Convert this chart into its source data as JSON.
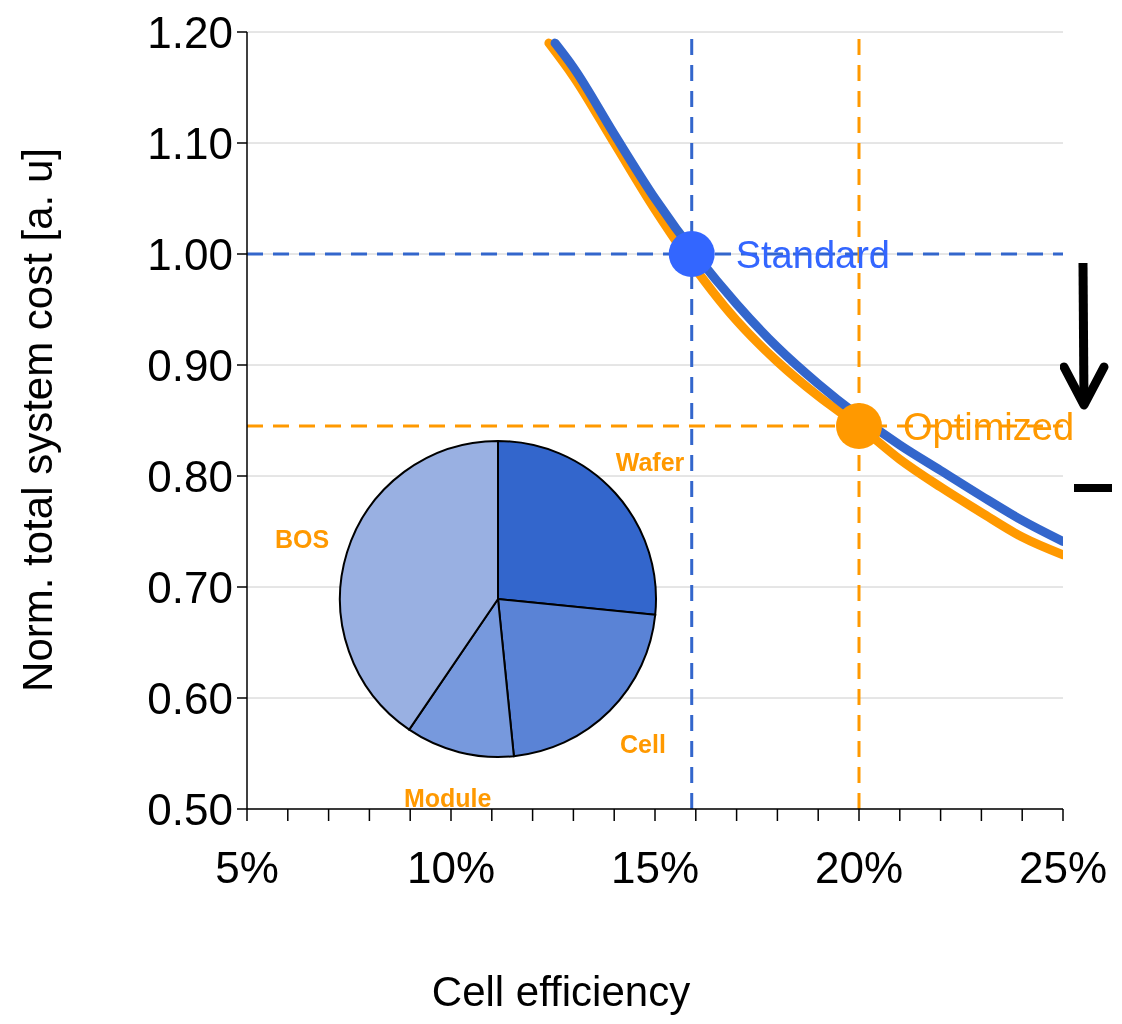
{
  "chart_data": [
    {
      "type": "line",
      "xlabel": "Cell efficiency",
      "ylabel": "Norm. total system cost [a. u]",
      "xlim": [
        5,
        25
      ],
      "ylim": [
        0.5,
        1.2
      ],
      "xticks": [
        {
          "value": 5,
          "label": "5%"
        },
        {
          "value": 6,
          "label": null
        },
        {
          "value": 7,
          "label": null
        },
        {
          "value": 8,
          "label": null
        },
        {
          "value": 9,
          "label": null
        },
        {
          "value": 10,
          "label": "10%"
        },
        {
          "value": 11,
          "label": null
        },
        {
          "value": 12,
          "label": null
        },
        {
          "value": 13,
          "label": null
        },
        {
          "value": 14,
          "label": null
        },
        {
          "value": 15,
          "label": "15%"
        },
        {
          "value": 16,
          "label": null
        },
        {
          "value": 17,
          "label": null
        },
        {
          "value": 18,
          "label": null
        },
        {
          "value": 19,
          "label": null
        },
        {
          "value": 20,
          "label": "20%"
        },
        {
          "value": 21,
          "label": null
        },
        {
          "value": 22,
          "label": null
        },
        {
          "value": 23,
          "label": null
        },
        {
          "value": 24,
          "label": null
        },
        {
          "value": 25,
          "label": "25%"
        }
      ],
      "yticks": [
        {
          "value": 0.5,
          "label": "0.50"
        },
        {
          "value": 0.6,
          "label": "0.60"
        },
        {
          "value": 0.7,
          "label": "0.70"
        },
        {
          "value": 0.8,
          "label": "0.80"
        },
        {
          "value": 0.9,
          "label": "0.90"
        },
        {
          "value": 1.0,
          "label": "1.00"
        },
        {
          "value": 1.1,
          "label": "1.10"
        },
        {
          "value": 1.2,
          "label": "1.20"
        }
      ],
      "grid": "y",
      "legend": false,
      "series": [
        {
          "type": "line",
          "color": "#ff9900",
          "x": [
            12.4,
            13,
            14,
            15,
            16,
            17,
            18,
            19,
            20,
            21,
            22,
            23,
            24,
            25
          ],
          "values": [
            1.19,
            1.16,
            1.1,
            1.04,
            null,
            0.94,
            0.903,
            0.872,
            0.845,
            0.815,
            0.79,
            0.767,
            0.745,
            0.729
          ]
        },
        {
          "type": "line",
          "color": "#3366cc",
          "x": [
            12.55,
            13,
            14,
            15,
            16,
            17,
            18,
            19,
            20,
            21,
            22,
            23,
            24,
            25
          ],
          "values": [
            1.19,
            1.168,
            1.108,
            1.05,
            null,
            0.955,
            0.916,
            0.883,
            null,
            0.828,
            0.805,
            0.782,
            0.76,
            0.741
          ]
        },
        {
          "type": "scatter",
          "name": "Standard",
          "color": "#3366ff",
          "x": [
            15.9
          ],
          "values": [
            1.0
          ]
        },
        {
          "type": "scatter",
          "name": "Optimized",
          "color": "#ff9900",
          "x": [
            20
          ],
          "values": [
            0.845
          ]
        }
      ],
      "ref_lines": [
        {
          "axis": "y",
          "value": 1.0,
          "color": "#3366cc",
          "line_style": "dashed"
        },
        {
          "axis": "x",
          "value": 15.9,
          "color": "#3366cc",
          "line_style": "dashed"
        },
        {
          "axis": "y",
          "value": 0.845,
          "color": "#ff9900",
          "line_style": "dashed"
        },
        {
          "axis": "x",
          "value": 20,
          "color": "#ff9900",
          "line_style": "dashed"
        }
      ]
    },
    {
      "type": "pie",
      "categories": [
        "Wafer",
        "Cell",
        "Module",
        "BOS"
      ],
      "values": [
        26.6,
        21.8,
        11.1,
        40.5
      ],
      "colors": [
        "#3366cc",
        "#5a83d6",
        "#7799dd",
        "#99b0e2"
      ]
    }
  ]
}
